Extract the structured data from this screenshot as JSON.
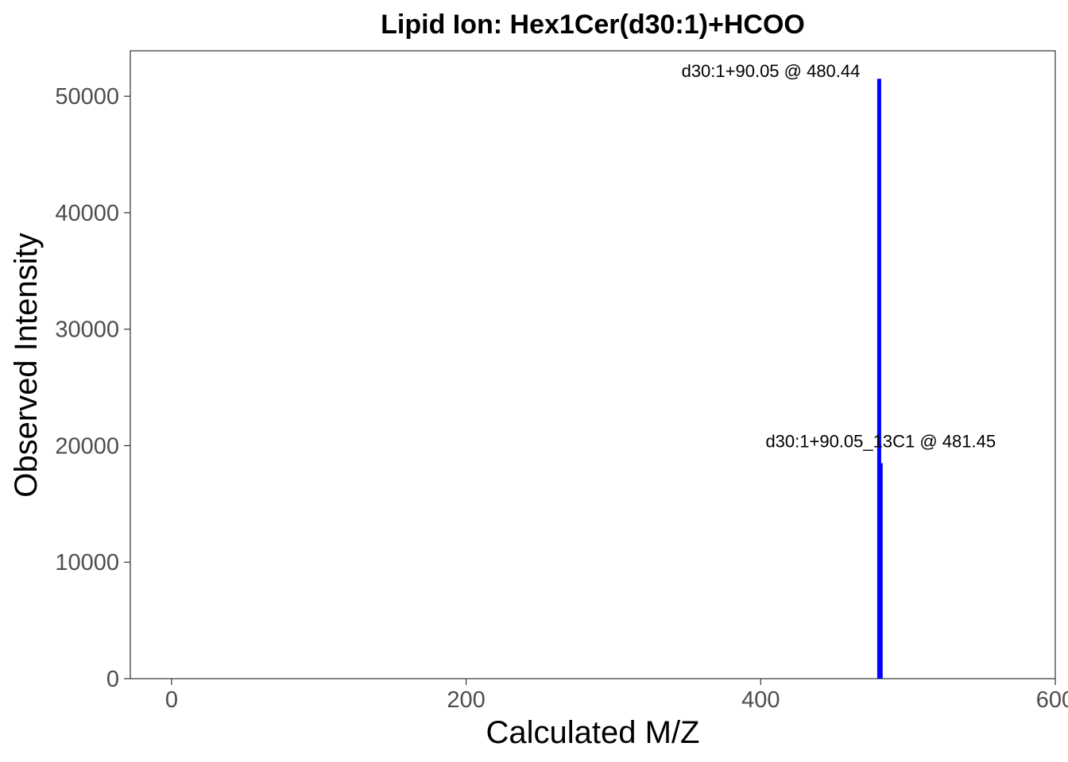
{
  "chart_data": {
    "type": "bar",
    "title": "Lipid Ion: Hex1Cer(d30:1)+HCOO",
    "xlabel": "Calculated M/Z",
    "ylabel": "Observed Intensity",
    "xlim": [
      -28,
      600
    ],
    "ylim": [
      0,
      53900
    ],
    "xticks": [
      0,
      200,
      400,
      600
    ],
    "yticks": [
      0,
      10000,
      20000,
      30000,
      40000,
      50000
    ],
    "grid": false,
    "series": [
      {
        "color": "#0000ff",
        "points": [
          {
            "x": 480.44,
            "y": 51500,
            "label": "d30:1+90.05 @ 480.44"
          },
          {
            "x": 481.45,
            "y": 18500,
            "label": "d30:1+90.05_13C1 @ 481.45"
          }
        ]
      }
    ]
  }
}
